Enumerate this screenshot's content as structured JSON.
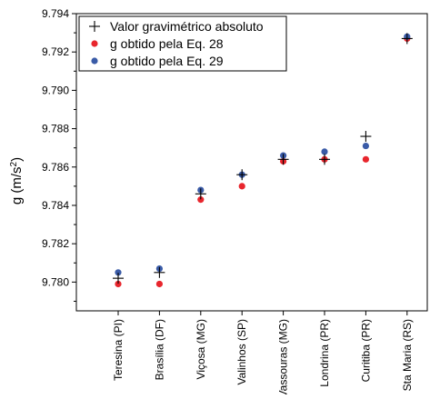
{
  "chart_data": {
    "type": "scatter",
    "title": "",
    "xlabel": "",
    "ylabel": "g (m/s",
    "ylabel_superscript": "2",
    "ylabel_suffix": ")",
    "ylim": [
      9.7785,
      9.794
    ],
    "yticks": [
      9.78,
      9.782,
      9.784,
      9.786,
      9.788,
      9.79,
      9.792,
      9.794
    ],
    "ytick_labels": [
      "9.780",
      "9.782",
      "9.784",
      "9.786",
      "9.788",
      "9.790",
      "9.792",
      "9.794"
    ],
    "categories": [
      "Teresina (PI)",
      "Brasília (DF)",
      "Viçosa (MG)",
      "Valinhos (SP)",
      "Vassouras (MG)",
      "Londrina (PR)",
      "Curitiba (PR)",
      "Sta Maria (RS)"
    ],
    "legend_position": "top-left",
    "grid": false,
    "series": [
      {
        "name": "Valor gravimétrico absoluto",
        "marker": "plus",
        "color": "#000000",
        "values": [
          9.7802,
          9.7805,
          9.7846,
          9.7856,
          9.7864,
          9.7864,
          9.7876,
          9.7927
        ]
      },
      {
        "name": "g obtido pela Eq. 28",
        "marker": "circle",
        "color": "#e8262d",
        "values": [
          9.7799,
          9.7799,
          9.7843,
          9.785,
          9.7863,
          9.7864,
          9.7864,
          9.7927
        ]
      },
      {
        "name": "g obtido pela Eq. 29",
        "marker": "circle",
        "color": "#3a5ba7",
        "values": [
          9.7805,
          9.7807,
          9.7848,
          9.7856,
          9.7866,
          9.7868,
          9.7871,
          9.7928
        ]
      }
    ]
  }
}
